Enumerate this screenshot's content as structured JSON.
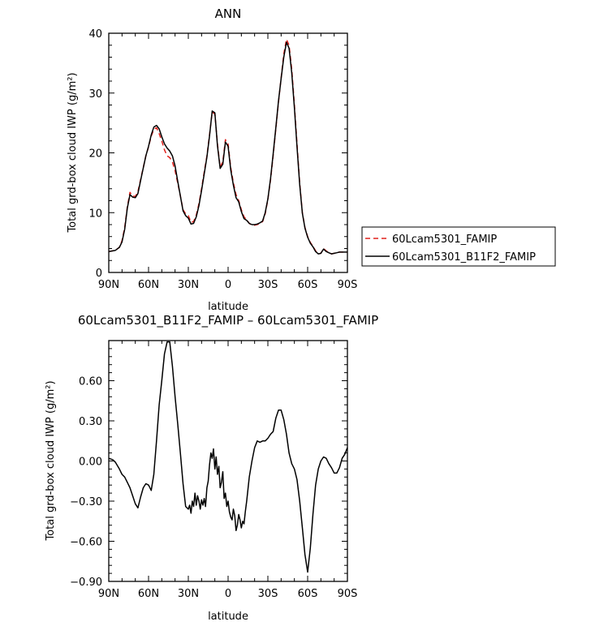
{
  "chart_data": [
    {
      "type": "line",
      "title": "ANN",
      "xlabel": "latitude",
      "ylabel": "Total grd-box cloud IWP (g/m²)",
      "xlim": [
        90,
        -90
      ],
      "ylim": [
        0,
        40
      ],
      "x_ticks": [
        "90N",
        "60N",
        "30N",
        "0",
        "30S",
        "60S",
        "90S"
      ],
      "y_ticks": [
        "0",
        "10",
        "20",
        "30",
        "40"
      ],
      "x": [
        90,
        85,
        82,
        80,
        78,
        76,
        74,
        72,
        70,
        68,
        65,
        62,
        60,
        58,
        56,
        54,
        52,
        50,
        48,
        46,
        44,
        42,
        40,
        38,
        36,
        34,
        32,
        30,
        28,
        26,
        24,
        22,
        20,
        18,
        16,
        14,
        12,
        10,
        8,
        6,
        4,
        2,
        0,
        -2,
        -4,
        -6,
        -8,
        -10,
        -12,
        -14,
        -16,
        -18,
        -20,
        -22,
        -24,
        -26,
        -28,
        -30,
        -32,
        -34,
        -36,
        -38,
        -40,
        -42,
        -44,
        -46,
        -48,
        -50,
        -52,
        -54,
        -56,
        -58,
        -60,
        -62,
        -64,
        -66,
        -68,
        -70,
        -72,
        -74,
        -76,
        -78,
        -80,
        -82,
        -84,
        -86,
        -88,
        -90
      ],
      "series": [
        {
          "name": "60Lcam5301_FAMIP",
          "color": "#e0201b",
          "dash": "dashed",
          "values": [
            3.5,
            3.7,
            4.2,
            5.3,
            7.5,
            11,
            13.4,
            12.8,
            12.7,
            13.5,
            16.5,
            19.5,
            21,
            22.8,
            23.9,
            24.2,
            23.2,
            22,
            20.5,
            19.5,
            19.2,
            18.5,
            17,
            15,
            12.8,
            10.5,
            9.8,
            9.5,
            8.4,
            8.5,
            9.6,
            11.5,
            14,
            16.8,
            19.5,
            23,
            26.8,
            26.5,
            21.5,
            17.6,
            18.5,
            22.2,
            21.5,
            17.5,
            15,
            13,
            12,
            10.5,
            9.3,
            8.8,
            8.2,
            7.9,
            7.9,
            8,
            8.2,
            8.5,
            9.8,
            12.2,
            15.5,
            19.5,
            24,
            28.5,
            32.5,
            36.5,
            39,
            38,
            34,
            28,
            21.5,
            15,
            10,
            7.5,
            6,
            5,
            4.4,
            3.6,
            3.1,
            3.2,
            4,
            3.6,
            3.3,
            3.1,
            3.2,
            3.3,
            3.4,
            3.4,
            3.4,
            3.4
          ]
        },
        {
          "name": "60Lcam5301_B11F2_FAMIP",
          "color": "#000000",
          "dash": "solid",
          "values": [
            3.5,
            3.7,
            4.2,
            5.1,
            7.2,
            10.8,
            13,
            12.6,
            12.5,
            13.2,
            16.4,
            19.5,
            21.1,
            23,
            24.3,
            24.6,
            24,
            22.7,
            21.5,
            20.8,
            20.3,
            19.5,
            17.8,
            15.3,
            12.8,
            10.3,
            9.5,
            9.1,
            8.1,
            8.2,
            9.3,
            11.2,
            13.7,
            16.5,
            19.3,
            22.8,
            27,
            26.7,
            21.2,
            17.4,
            18.1,
            21.8,
            21.1,
            17.1,
            14.6,
            12.5,
            11.8,
            10.2,
            9,
            8.7,
            8.2,
            8,
            8,
            8.1,
            8.3,
            8.6,
            10,
            12.3,
            15.7,
            19.8,
            24.2,
            28.7,
            32.4,
            36,
            38.5,
            37.5,
            33.4,
            27.5,
            21,
            14.7,
            9.9,
            7.4,
            5.9,
            4.9,
            4.3,
            3.5,
            3.1,
            3.2,
            3.9,
            3.5,
            3.3,
            3.1,
            3.2,
            3.3,
            3.4,
            3.4,
            3.4,
            3.4
          ]
        }
      ],
      "legend": {
        "placement": "right"
      }
    },
    {
      "type": "line",
      "title": "60Lcam5301_B11F2_FAMIP – 60Lcam5301_FAMIP",
      "xlabel": "latitude",
      "ylabel": "Total grd-box cloud IWP (g/m²)",
      "xlim": [
        90,
        -90
      ],
      "ylim": [
        -0.9,
        0.9
      ],
      "x_ticks": [
        "90N",
        "60N",
        "30N",
        "0",
        "30S",
        "60S",
        "90S"
      ],
      "y_ticks": [
        "−0.90",
        "−0.60",
        "−0.30",
        "0.00",
        "0.30",
        "0.60"
      ],
      "series": [
        {
          "color": "#000000",
          "x": [
            90,
            87,
            85,
            82,
            80,
            78,
            76,
            74,
            72,
            70,
            68,
            66,
            64,
            62,
            60,
            58,
            56,
            54,
            52,
            50,
            48,
            46,
            44,
            42,
            40,
            38,
            36,
            34,
            32,
            30,
            29,
            28,
            27,
            26,
            25,
            24,
            23,
            22,
            21,
            20,
            19,
            18,
            17,
            16,
            15,
            14,
            13,
            12,
            11,
            10,
            9,
            8,
            7,
            6,
            5,
            4,
            3,
            2,
            1,
            0,
            -1,
            -2,
            -3,
            -4,
            -5,
            -6,
            -7,
            -8,
            -9,
            -10,
            -11,
            -12,
            -13,
            -14,
            -16,
            -18,
            -20,
            -22,
            -24,
            -26,
            -28,
            -30,
            -32,
            -34,
            -36,
            -38,
            -40,
            -42,
            -44,
            -46,
            -48,
            -50,
            -52,
            -54,
            -56,
            -58,
            -60,
            -62,
            -64,
            -66,
            -68,
            -70,
            -72,
            -74,
            -76,
            -78,
            -80,
            -82,
            -84,
            -86,
            -88,
            -90
          ],
          "values": [
            0.02,
            0.01,
            -0.01,
            -0.06,
            -0.1,
            -0.12,
            -0.16,
            -0.2,
            -0.26,
            -0.32,
            -0.35,
            -0.27,
            -0.2,
            -0.17,
            -0.18,
            -0.22,
            -0.1,
            0.15,
            0.42,
            0.6,
            0.8,
            0.89,
            0.89,
            0.71,
            0.48,
            0.28,
            0.06,
            -0.17,
            -0.34,
            -0.36,
            -0.33,
            -0.39,
            -0.3,
            -0.34,
            -0.24,
            -0.33,
            -0.26,
            -0.3,
            -0.36,
            -0.29,
            -0.33,
            -0.28,
            -0.34,
            -0.2,
            -0.15,
            -0.03,
            0.06,
            0.02,
            0.09,
            -0.06,
            0.03,
            -0.1,
            -0.04,
            -0.2,
            -0.16,
            -0.08,
            -0.28,
            -0.24,
            -0.34,
            -0.3,
            -0.38,
            -0.42,
            -0.44,
            -0.36,
            -0.41,
            -0.52,
            -0.48,
            -0.4,
            -0.44,
            -0.5,
            -0.45,
            -0.47,
            -0.38,
            -0.3,
            -0.12,
            0.0,
            0.1,
            0.15,
            0.14,
            0.15,
            0.15,
            0.17,
            0.2,
            0.22,
            0.32,
            0.38,
            0.38,
            0.31,
            0.2,
            0.06,
            -0.02,
            -0.06,
            -0.14,
            -0.3,
            -0.5,
            -0.7,
            -0.83,
            -0.65,
            -0.4,
            -0.18,
            -0.06,
            0.0,
            0.03,
            0.02,
            -0.02,
            -0.05,
            -0.09,
            -0.09,
            -0.05,
            0.02,
            0.05,
            0.1
          ]
        }
      ]
    }
  ]
}
